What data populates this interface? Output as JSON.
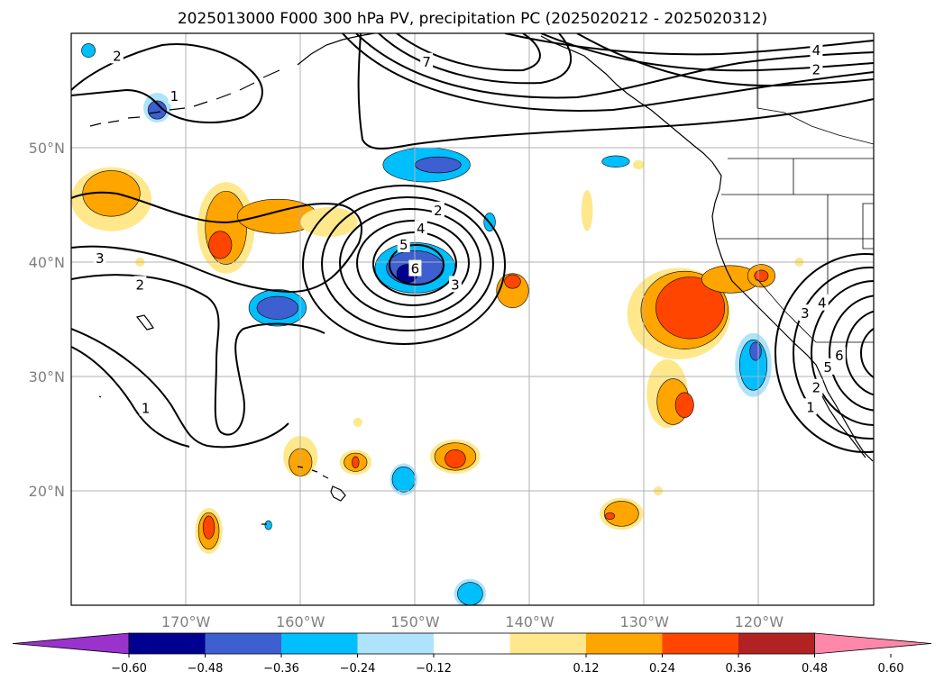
{
  "chart_data": {
    "type": "heatmap",
    "title": "2025013000 F000 300 hPa PV, precipitation PC (2025020212 - 2025020312)",
    "x_ticks": [
      "170°W",
      "160°W",
      "150°W",
      "140°W",
      "130°W",
      "120°W"
    ],
    "y_ticks": [
      "50°N",
      "40°N",
      "30°N",
      "20°N"
    ],
    "xlim": [
      -180,
      -110
    ],
    "ylim": [
      10,
      60
    ],
    "grid": true,
    "colorbar": {
      "orientation": "horizontal",
      "extend": "both",
      "tick_labels": [
        "−0.60",
        "−0.48",
        "−0.36",
        "−0.24",
        "−0.12",
        "0.12",
        "0.24",
        "0.36",
        "0.48",
        "0.60"
      ],
      "colors": [
        "#9933cc",
        "#000090",
        "#3d5fcf",
        "#00bfff",
        "#aee3fb",
        "#ffffff",
        "#ffe88c",
        "#ffa500",
        "#ff4500",
        "#b22222",
        "#ff88aa"
      ]
    },
    "pv_contour_labels": [
      {
        "text": "2",
        "lon": -176.0,
        "lat": 58.0
      },
      {
        "text": "1",
        "lon": -171.0,
        "lat": 54.5
      },
      {
        "text": "7",
        "lon": -149.0,
        "lat": 57.5
      },
      {
        "text": "4",
        "lon": -115.0,
        "lat": 58.5
      },
      {
        "text": "2",
        "lon": -115.0,
        "lat": 56.8
      },
      {
        "text": "2",
        "lon": -148.0,
        "lat": 44.5
      },
      {
        "text": "4",
        "lon": -149.5,
        "lat": 42.9
      },
      {
        "text": "5",
        "lon": -151.0,
        "lat": 41.5
      },
      {
        "text": "6",
        "lon": -150.0,
        "lat": 39.4
      },
      {
        "text": "3",
        "lon": -146.5,
        "lat": 38.0
      },
      {
        "text": "3",
        "lon": -177.5,
        "lat": 40.3
      },
      {
        "text": "2",
        "lon": -174.0,
        "lat": 38.0
      },
      {
        "text": "1",
        "lon": -173.5,
        "lat": 27.2
      },
      {
        "text": "4",
        "lon": -114.5,
        "lat": 36.4
      },
      {
        "text": "3",
        "lon": -116.0,
        "lat": 35.5
      },
      {
        "text": "6",
        "lon": -113.0,
        "lat": 31.8
      },
      {
        "text": "5",
        "lon": -114.0,
        "lat": 30.8
      },
      {
        "text": "2",
        "lon": -115.0,
        "lat": 29.0
      },
      {
        "text": "1",
        "lon": -115.5,
        "lat": 27.3
      }
    ],
    "precip_blobs": [
      {
        "lon": -176.5,
        "lat": 45.5,
        "rx": 3.5,
        "ry": 2.8,
        "level": 1
      },
      {
        "lon": -176.5,
        "lat": 46.0,
        "rx": 2.5,
        "ry": 2.0,
        "level": 2
      },
      {
        "lon": -166.5,
        "lat": 43.0,
        "rx": 2.5,
        "ry": 4.0,
        "level": 1
      },
      {
        "lon": -166.5,
        "lat": 43.0,
        "rx": 1.8,
        "ry": 3.2,
        "level": 2
      },
      {
        "lon": -167.0,
        "lat": 41.5,
        "rx": 1.0,
        "ry": 1.2,
        "level": 3
      },
      {
        "lon": -162.0,
        "lat": 44.0,
        "rx": 3.5,
        "ry": 1.5,
        "level": 2
      },
      {
        "lon": -157.5,
        "lat": 43.5,
        "rx": 2.5,
        "ry": 1.3,
        "level": 1
      },
      {
        "lon": -174.0,
        "lat": 40.0,
        "rx": 0.4,
        "ry": 0.4,
        "level": 1
      },
      {
        "lon": -172.5,
        "lat": 53.5,
        "rx": 1.2,
        "ry": 1.3,
        "level": -1
      },
      {
        "lon": -172.5,
        "lat": 53.3,
        "rx": 0.8,
        "ry": 0.8,
        "level": -3
      },
      {
        "lon": -178.5,
        "lat": 58.5,
        "rx": 0.6,
        "ry": 0.6,
        "level": -2
      },
      {
        "lon": -149.0,
        "lat": 48.5,
        "rx": 3.8,
        "ry": 1.5,
        "level": -2
      },
      {
        "lon": -148.0,
        "lat": 48.5,
        "rx": 2.0,
        "ry": 0.7,
        "level": -3
      },
      {
        "lon": -150.0,
        "lat": 39.5,
        "rx": 3.5,
        "ry": 2.2,
        "level": -2
      },
      {
        "lon": -150.0,
        "lat": 39.5,
        "rx": 2.5,
        "ry": 1.5,
        "level": -3
      },
      {
        "lon": -150.7,
        "lat": 39.0,
        "rx": 0.9,
        "ry": 0.8,
        "level": -4
      },
      {
        "lon": -162.0,
        "lat": 36.0,
        "rx": 2.5,
        "ry": 1.6,
        "level": -2
      },
      {
        "lon": -162.0,
        "lat": 36.0,
        "rx": 1.8,
        "ry": 1.0,
        "level": -3
      },
      {
        "lon": -143.5,
        "lat": 43.5,
        "rx": 0.5,
        "ry": 0.8,
        "level": -2
      },
      {
        "lon": -132.5,
        "lat": 48.8,
        "rx": 1.2,
        "ry": 0.5,
        "level": -2
      },
      {
        "lon": -141.5,
        "lat": 37.5,
        "rx": 1.4,
        "ry": 1.5,
        "level": 2
      },
      {
        "lon": -141.5,
        "lat": 38.3,
        "rx": 0.7,
        "ry": 0.6,
        "level": 3
      },
      {
        "lon": -135.0,
        "lat": 44.5,
        "rx": 0.5,
        "ry": 1.8,
        "level": 1
      },
      {
        "lon": -130.5,
        "lat": 48.5,
        "rx": 0.5,
        "ry": 0.4,
        "level": 1
      },
      {
        "lon": -127.0,
        "lat": 35.5,
        "rx": 4.5,
        "ry": 4.0,
        "level": 1
      },
      {
        "lon": -126.5,
        "lat": 35.8,
        "rx": 3.8,
        "ry": 3.4,
        "level": 2
      },
      {
        "lon": -126.0,
        "lat": 36.0,
        "rx": 3.0,
        "ry": 2.7,
        "level": 3
      },
      {
        "lon": -122.5,
        "lat": 38.5,
        "rx": 2.5,
        "ry": 1.2,
        "level": 2
      },
      {
        "lon": -119.8,
        "lat": 38.8,
        "rx": 1.2,
        "ry": 1.0,
        "level": 2
      },
      {
        "lon": -119.8,
        "lat": 38.8,
        "rx": 0.6,
        "ry": 0.5,
        "level": 3
      },
      {
        "lon": -116.5,
        "lat": 40.0,
        "rx": 0.4,
        "ry": 0.4,
        "level": 1
      },
      {
        "lon": -128.0,
        "lat": 28.5,
        "rx": 1.8,
        "ry": 3.0,
        "level": 1
      },
      {
        "lon": -127.5,
        "lat": 27.8,
        "rx": 1.4,
        "ry": 2.0,
        "level": 2
      },
      {
        "lon": -126.5,
        "lat": 27.5,
        "rx": 0.8,
        "ry": 1.1,
        "level": 3
      },
      {
        "lon": -120.5,
        "lat": 31.0,
        "rx": 1.6,
        "ry": 2.8,
        "level": -1
      },
      {
        "lon": -120.5,
        "lat": 31.0,
        "rx": 1.2,
        "ry": 2.2,
        "level": -2
      },
      {
        "lon": -120.3,
        "lat": 32.2,
        "rx": 0.5,
        "ry": 0.8,
        "level": -3
      },
      {
        "lon": -155.0,
        "lat": 26.0,
        "rx": 0.4,
        "ry": 0.4,
        "level": 1
      },
      {
        "lon": -160.0,
        "lat": 23.0,
        "rx": 1.5,
        "ry": 1.8,
        "level": 1
      },
      {
        "lon": -160.0,
        "lat": 22.5,
        "rx": 1.0,
        "ry": 1.2,
        "level": 2
      },
      {
        "lon": -155.2,
        "lat": 22.5,
        "rx": 1.4,
        "ry": 1.1,
        "level": 1
      },
      {
        "lon": -155.2,
        "lat": 22.5,
        "rx": 1.0,
        "ry": 0.8,
        "level": 2
      },
      {
        "lon": -155.2,
        "lat": 22.5,
        "rx": 0.3,
        "ry": 0.5,
        "level": 3
      },
      {
        "lon": -151.0,
        "lat": 21.0,
        "rx": 1.2,
        "ry": 1.4,
        "level": -1
      },
      {
        "lon": -151.0,
        "lat": 21.0,
        "rx": 1.0,
        "ry": 1.1,
        "level": -2
      },
      {
        "lon": -146.5,
        "lat": 23.0,
        "rx": 2.2,
        "ry": 1.5,
        "level": 1
      },
      {
        "lon": -146.5,
        "lat": 23.0,
        "rx": 1.8,
        "ry": 1.2,
        "level": 2
      },
      {
        "lon": -146.5,
        "lat": 22.8,
        "rx": 0.9,
        "ry": 0.8,
        "level": 3
      },
      {
        "lon": -168.0,
        "lat": 16.5,
        "rx": 1.2,
        "ry": 2.0,
        "level": 1
      },
      {
        "lon": -168.0,
        "lat": 16.5,
        "rx": 0.9,
        "ry": 1.6,
        "level": 2
      },
      {
        "lon": -168.0,
        "lat": 16.8,
        "rx": 0.5,
        "ry": 1.0,
        "level": 3
      },
      {
        "lon": -162.8,
        "lat": 17.0,
        "rx": 0.3,
        "ry": 0.4,
        "level": -2
      },
      {
        "lon": -132.0,
        "lat": 18.0,
        "rx": 1.9,
        "ry": 1.4,
        "level": 1
      },
      {
        "lon": -132.0,
        "lat": 18.0,
        "rx": 1.5,
        "ry": 1.1,
        "level": 2
      },
      {
        "lon": -133.0,
        "lat": 17.8,
        "rx": 0.4,
        "ry": 0.3,
        "level": 3
      },
      {
        "lon": -128.8,
        "lat": 20.0,
        "rx": 0.4,
        "ry": 0.4,
        "level": 1
      },
      {
        "lon": -145.2,
        "lat": 11.0,
        "rx": 1.4,
        "ry": 1.3,
        "level": -1
      },
      {
        "lon": -145.2,
        "lat": 11.0,
        "rx": 1.1,
        "ry": 1.0,
        "level": -2
      }
    ]
  }
}
